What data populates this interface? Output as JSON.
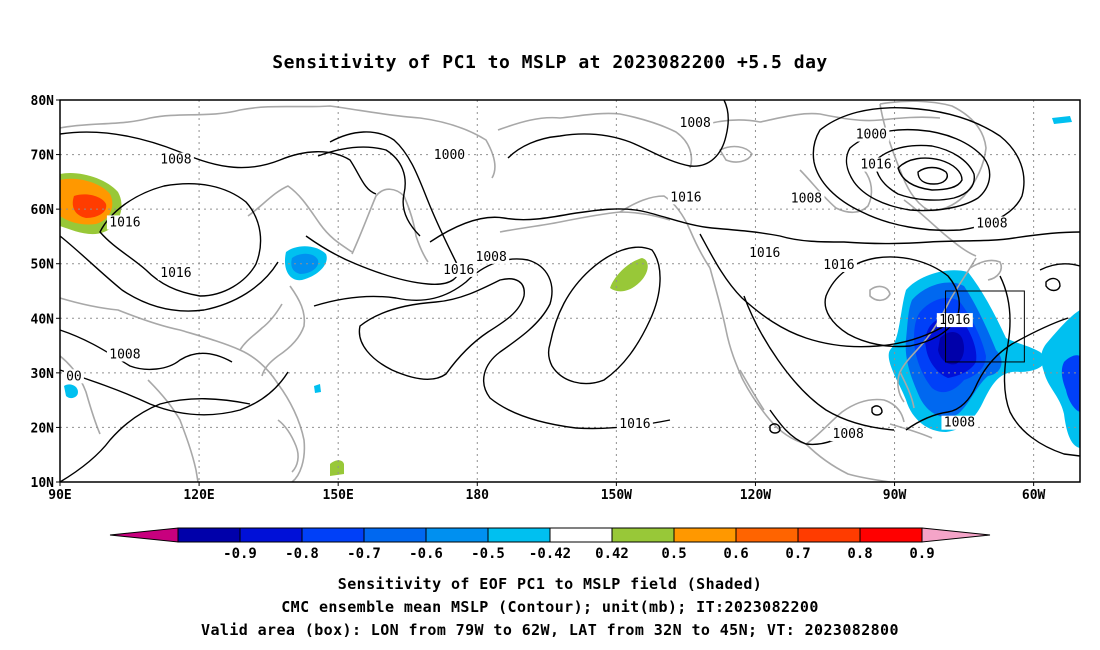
{
  "title": "Sensitivity of PC1 to MSLP at 2023082200 +5.5 day",
  "map": {
    "lon_range": [
      90,
      310
    ],
    "lat_range": [
      10,
      80
    ],
    "lat_ticks": [
      {
        "value": 80,
        "label": "80N"
      },
      {
        "value": 70,
        "label": "70N"
      },
      {
        "value": 60,
        "label": "60N"
      },
      {
        "value": 50,
        "label": "50N"
      },
      {
        "value": 40,
        "label": "40N"
      },
      {
        "value": 30,
        "label": "30N"
      },
      {
        "value": 20,
        "label": "20N"
      },
      {
        "value": 10,
        "label": "10N"
      }
    ],
    "lon_ticks": [
      {
        "value": 90,
        "label": "90E"
      },
      {
        "value": 120,
        "label": "120E"
      },
      {
        "value": 150,
        "label": "150E"
      },
      {
        "value": 180,
        "label": "180"
      },
      {
        "value": 210,
        "label": "150W"
      },
      {
        "value": 240,
        "label": "120W"
      },
      {
        "value": 270,
        "label": "90W"
      },
      {
        "value": 300,
        "label": "60W"
      }
    ],
    "grid": "dotted",
    "colors": {
      "coastline": "#a8a8a8",
      "contour": "#000000"
    },
    "contour_labels": [
      {
        "text": "1008",
        "lon": 227,
        "lat": 75.4
      },
      {
        "text": "1000",
        "lon": 265,
        "lat": 73.3
      },
      {
        "text": "1000",
        "lon": 174,
        "lat": 69.6
      },
      {
        "text": "1008",
        "lon": 115,
        "lat": 68.7
      },
      {
        "text": "1016",
        "lon": 266,
        "lat": 67.8
      },
      {
        "text": "1008",
        "lon": 251,
        "lat": 61.6
      },
      {
        "text": "1016",
        "lon": 225,
        "lat": 61.8
      },
      {
        "text": "1008",
        "lon": 291,
        "lat": 57.0
      },
      {
        "text": "1016",
        "lon": 104,
        "lat": 57.2
      },
      {
        "text": "1008",
        "lon": 183,
        "lat": 50.9
      },
      {
        "text": "1016",
        "lon": 242,
        "lat": 51.6
      },
      {
        "text": "1016",
        "lon": 258,
        "lat": 49.4
      },
      {
        "text": "1016",
        "lon": 115,
        "lat": 47.9
      },
      {
        "text": "1016",
        "lon": 176,
        "lat": 48.5
      },
      {
        "text": "1016",
        "lon": 283,
        "lat": 39.3
      },
      {
        "text": "1008",
        "lon": 104,
        "lat": 33.0
      },
      {
        "text": "00",
        "lon": 93,
        "lat": 29.0
      },
      {
        "text": "1016",
        "lon": 214,
        "lat": 20.3
      },
      {
        "text": "1008",
        "lon": 260,
        "lat": 18.4
      },
      {
        "text": "1008",
        "lon": 284,
        "lat": 20.5
      }
    ],
    "valid_box": {
      "lon_min": 281,
      "lon_max": 298,
      "lat_min": 32,
      "lat_max": 45
    }
  },
  "colorbar": {
    "colors": [
      "#c8007e",
      "#0000aa",
      "#0010d8",
      "#0040f8",
      "#0068f0",
      "#0090f0",
      "#00c0f0",
      "#ffffff",
      "#98c838",
      "#ff9800",
      "#ff6400",
      "#ff3c00",
      "#ff0000",
      "#f4a4c8"
    ],
    "labels": [
      "-0.9",
      "-0.8",
      "-0.7",
      "-0.6",
      "-0.5",
      "-0.42",
      "0.42",
      "0.5",
      "0.6",
      "0.7",
      "0.8",
      "0.9"
    ]
  },
  "captions": {
    "line1": "Sensitivity of EOF PC1 to MSLP field (Shaded)",
    "line2": "CMC ensemble mean MSLP (Contour); unit(mb); IT:2023082200",
    "line3": "Valid area (box): LON from 79W to 62W, LAT from 32N to 45N; VT: 2023082800"
  }
}
